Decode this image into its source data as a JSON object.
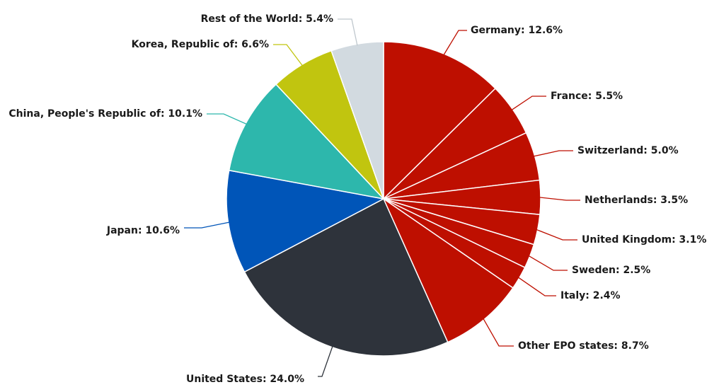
{
  "chart_data": {
    "type": "pie",
    "slices": [
      {
        "name": "Germany",
        "value": 12.6,
        "label": "Germany: 12.6%",
        "color": "#BE0F00"
      },
      {
        "name": "France",
        "value": 5.5,
        "label": "France: 5.5%",
        "color": "#BE0F00"
      },
      {
        "name": "Switzerland",
        "value": 5.0,
        "label": "Switzerland: 5.0%",
        "color": "#BE0F00"
      },
      {
        "name": "Netherlands",
        "value": 3.5,
        "label": "Netherlands: 3.5%",
        "color": "#BE0F00"
      },
      {
        "name": "United Kingdom",
        "value": 3.1,
        "label": "United Kingdom: 3.1%",
        "color": "#BE0F00"
      },
      {
        "name": "Sweden",
        "value": 2.5,
        "label": "Sweden: 2.5%",
        "color": "#BE0F00"
      },
      {
        "name": "Italy",
        "value": 2.4,
        "label": "Italy: 2.4%",
        "color": "#BE0F00"
      },
      {
        "name": "Other EPO states",
        "value": 8.7,
        "label": "Other EPO states: 8.7%",
        "color": "#BE0F00"
      },
      {
        "name": "United States",
        "value": 24.0,
        "label": "United States: 24.0%",
        "color": "#2E333B"
      },
      {
        "name": "Japan",
        "value": 10.6,
        "label": "Japan: 10.6%",
        "color": "#0055B8"
      },
      {
        "name": "China, People's Republic of",
        "value": 10.1,
        "label": "China, People's Republic of: 10.1%",
        "color": "#2DB7AC"
      },
      {
        "name": "Korea, Republic of",
        "value": 6.6,
        "label": "Korea, Republic of: 6.6%",
        "color": "#C1C50F"
      },
      {
        "name": "Rest of the World",
        "value": 5.4,
        "label": "Rest of the World: 5.4%",
        "color": "#D2DAE0"
      }
    ],
    "start_angle": "12 o'clock",
    "direction": "clockwise",
    "legend": "none"
  }
}
